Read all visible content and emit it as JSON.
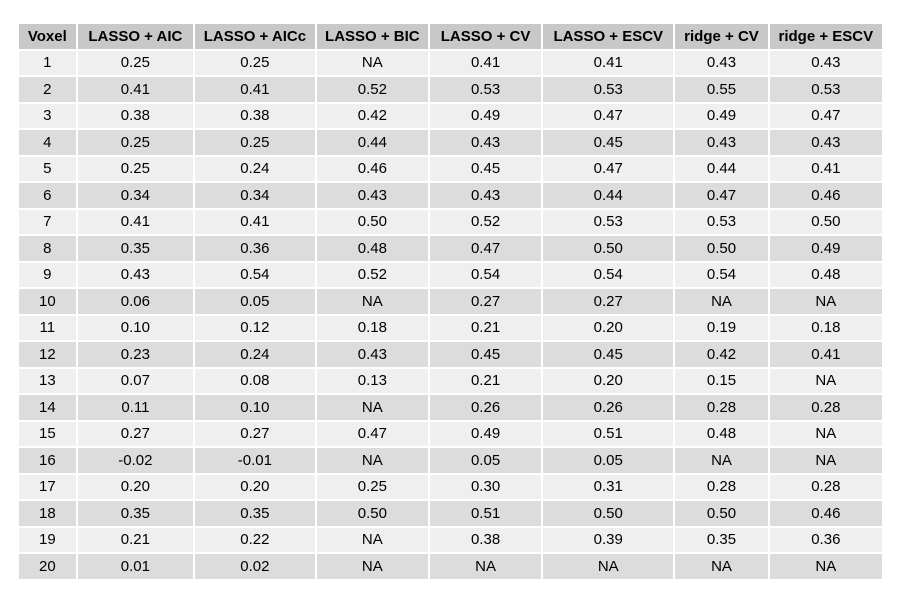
{
  "table": {
    "headers": [
      "Voxel",
      "LASSO + AIC",
      "LASSO + AICc",
      "LASSO + BIC",
      "LASSO + CV",
      "LASSO + ESCV",
      "ridge + CV",
      "ridge + ESCV"
    ],
    "rows": [
      [
        "1",
        "0.25",
        "0.25",
        "NA",
        "0.41",
        "0.41",
        "0.43",
        "0.43"
      ],
      [
        "2",
        "0.41",
        "0.41",
        "0.52",
        "0.53",
        "0.53",
        "0.55",
        "0.53"
      ],
      [
        "3",
        "0.38",
        "0.38",
        "0.42",
        "0.49",
        "0.47",
        "0.49",
        "0.47"
      ],
      [
        "4",
        "0.25",
        "0.25",
        "0.44",
        "0.43",
        "0.45",
        "0.43",
        "0.43"
      ],
      [
        "5",
        "0.25",
        "0.24",
        "0.46",
        "0.45",
        "0.47",
        "0.44",
        "0.41"
      ],
      [
        "6",
        "0.34",
        "0.34",
        "0.43",
        "0.43",
        "0.44",
        "0.47",
        "0.46"
      ],
      [
        "7",
        "0.41",
        "0.41",
        "0.50",
        "0.52",
        "0.53",
        "0.53",
        "0.50"
      ],
      [
        "8",
        "0.35",
        "0.36",
        "0.48",
        "0.47",
        "0.50",
        "0.50",
        "0.49"
      ],
      [
        "9",
        "0.43",
        "0.54",
        "0.52",
        "0.54",
        "0.54",
        "0.54",
        "0.48"
      ],
      [
        "10",
        "0.06",
        "0.05",
        "NA",
        "0.27",
        "0.27",
        "NA",
        "NA"
      ],
      [
        "11",
        "0.10",
        "0.12",
        "0.18",
        "0.21",
        "0.20",
        "0.19",
        "0.18"
      ],
      [
        "12",
        "0.23",
        "0.24",
        "0.43",
        "0.45",
        "0.45",
        "0.42",
        "0.41"
      ],
      [
        "13",
        "0.07",
        "0.08",
        "0.13",
        "0.21",
        "0.20",
        "0.15",
        "NA"
      ],
      [
        "14",
        "0.11",
        "0.10",
        "NA",
        "0.26",
        "0.26",
        "0.28",
        "0.28"
      ],
      [
        "15",
        "0.27",
        "0.27",
        "0.47",
        "0.49",
        "0.51",
        "0.48",
        "NA"
      ],
      [
        "16",
        "-0.02",
        "-0.01",
        "NA",
        "0.05",
        "0.05",
        "NA",
        "NA"
      ],
      [
        "17",
        "0.20",
        "0.20",
        "0.25",
        "0.30",
        "0.31",
        "0.28",
        "0.28"
      ],
      [
        "18",
        "0.35",
        "0.35",
        "0.50",
        "0.51",
        "0.50",
        "0.50",
        "0.46"
      ],
      [
        "19",
        "0.21",
        "0.22",
        "NA",
        "0.38",
        "0.39",
        "0.35",
        "0.36"
      ],
      [
        "20",
        "0.01",
        "0.02",
        "NA",
        "NA",
        "NA",
        "NA",
        "NA"
      ]
    ]
  },
  "colors": {
    "header_bg": "#c8c8c8",
    "row_light": "#efefef",
    "row_dark": "#dcdcdc"
  }
}
